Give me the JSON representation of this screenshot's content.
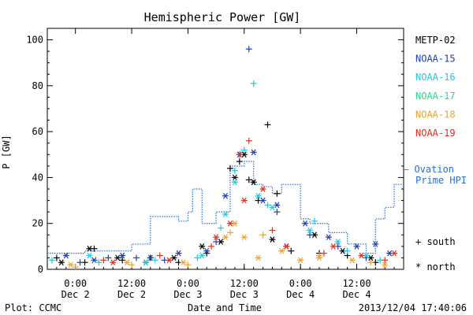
{
  "chart_data": {
    "type": "scatter",
    "title": "Hemispheric Power [GW]",
    "ylabel": "P [GW]",
    "xlabel": "Date and Time",
    "ylim": [
      0,
      105
    ],
    "yticks": [
      0,
      20,
      40,
      60,
      80,
      100
    ],
    "xlim": [
      "2013-12-01 18:00",
      "2013-12-04 22:00"
    ],
    "xticks": [
      {
        "at": "2013-12-02 00:00",
        "time": "0:00",
        "date": "Dec 2"
      },
      {
        "at": "2013-12-02 12:00",
        "time": "12:00",
        "date": "Dec 2"
      },
      {
        "at": "2013-12-03 00:00",
        "time": "0:00",
        "date": "Dec 3"
      },
      {
        "at": "2013-12-03 12:00",
        "time": "12:00",
        "date": "Dec 3"
      },
      {
        "at": "2013-12-04 00:00",
        "time": "0:00",
        "date": "Dec 4"
      },
      {
        "at": "2013-12-04 12:00",
        "time": "12:00",
        "date": "Dec 4"
      }
    ],
    "grid": false,
    "legend_position": "right",
    "series": [
      {
        "name": "METP-02",
        "color": "#000000",
        "south": [
          [
            "2013-12-01 20:00",
            5
          ],
          [
            "2013-12-02 02:00",
            3
          ],
          [
            "2013-12-02 04:00",
            9
          ],
          [
            "2013-12-02 10:00",
            4
          ],
          [
            "2013-12-02 16:00",
            5
          ],
          [
            "2013-12-02 22:00",
            3
          ],
          [
            "2013-12-03 04:00",
            7
          ],
          [
            "2013-12-03 09:00",
            44
          ],
          [
            "2013-12-03 11:00",
            47
          ],
          [
            "2013-12-03 13:00",
            39
          ],
          [
            "2013-12-03 15:00",
            30
          ],
          [
            "2013-12-03 17:00",
            63
          ],
          [
            "2013-12-03 19:00",
            33
          ],
          [
            "2013-12-03 22:00",
            8
          ],
          [
            "2013-12-04 04:00",
            7
          ],
          [
            "2013-12-04 10:00",
            6
          ],
          [
            "2013-12-04 16:00",
            3
          ]
        ],
        "north": [
          [
            "2013-12-01 21:00",
            3
          ],
          [
            "2013-12-02 03:00",
            9
          ],
          [
            "2013-12-02 09:00",
            5
          ],
          [
            "2013-12-02 15:00",
            3
          ],
          [
            "2013-12-02 21:00",
            5
          ],
          [
            "2013-12-03 03:00",
            10
          ],
          [
            "2013-12-03 07:00",
            12
          ],
          [
            "2013-12-03 10:00",
            40
          ],
          [
            "2013-12-03 12:00",
            50
          ],
          [
            "2013-12-03 14:00",
            38
          ],
          [
            "2013-12-03 18:00",
            13
          ],
          [
            "2013-12-03 21:00",
            10
          ],
          [
            "2013-12-04 03:00",
            15
          ],
          [
            "2013-12-04 09:00",
            8
          ],
          [
            "2013-12-04 15:00",
            5
          ]
        ]
      },
      {
        "name": "NOAA-15",
        "color": "#1f3fb0",
        "south": [
          [
            "2013-12-02 01:00",
            3
          ],
          [
            "2013-12-02 07:00",
            5
          ],
          [
            "2013-12-02 13:00",
            5
          ],
          [
            "2013-12-02 19:00",
            4
          ],
          [
            "2013-12-03 06:00",
            12
          ],
          [
            "2013-12-03 13:00",
            96
          ],
          [
            "2013-12-03 19:00",
            25
          ],
          [
            "2013-12-04 02:00",
            15
          ],
          [
            "2013-12-04 08:00",
            10
          ],
          [
            "2013-12-04 14:00",
            5
          ]
        ],
        "north": [
          [
            "2013-12-01 22:00",
            6
          ],
          [
            "2013-12-02 04:00",
            4
          ],
          [
            "2013-12-02 10:00",
            6
          ],
          [
            "2013-12-02 16:00",
            5
          ],
          [
            "2013-12-02 22:00",
            7
          ],
          [
            "2013-12-03 04:00",
            8
          ],
          [
            "2013-12-03 08:00",
            32
          ],
          [
            "2013-12-03 11:00",
            50
          ],
          [
            "2013-12-03 14:00",
            51
          ],
          [
            "2013-12-03 16:00",
            30
          ],
          [
            "2013-12-03 19:00",
            28
          ],
          [
            "2013-12-04 01:00",
            20
          ],
          [
            "2013-12-04 06:00",
            14
          ],
          [
            "2013-12-04 12:00",
            10
          ],
          [
            "2013-12-04 16:00",
            11
          ],
          [
            "2013-12-04 19:00",
            7
          ]
        ]
      },
      {
        "name": "NOAA-16",
        "color": "#22c8e0",
        "south": [
          [
            "2013-12-01 19:00",
            4
          ],
          [
            "2013-12-02 05:00",
            3
          ],
          [
            "2013-12-02 17:00",
            4
          ],
          [
            "2013-12-03 02:00",
            5
          ],
          [
            "2013-12-03 07:00",
            18
          ],
          [
            "2013-12-03 10:00",
            43
          ],
          [
            "2013-12-03 12:00",
            52
          ],
          [
            "2013-12-03 14:00",
            81
          ],
          [
            "2013-12-03 17:00",
            28
          ],
          [
            "2013-12-04 03:00",
            21
          ],
          [
            "2013-12-04 10:00",
            8
          ],
          [
            "2013-12-04 17:00",
            4
          ]
        ],
        "north": [
          [
            "2013-12-02 03:00",
            6
          ],
          [
            "2013-12-02 15:00",
            3
          ],
          [
            "2013-12-03 03:00",
            6
          ],
          [
            "2013-12-03 08:00",
            24
          ],
          [
            "2013-12-03 10:00",
            38
          ],
          [
            "2013-12-03 15:00",
            32
          ],
          [
            "2013-12-03 18:00",
            27
          ],
          [
            "2013-12-04 02:00",
            17
          ],
          [
            "2013-12-04 08:00",
            12
          ],
          [
            "2013-12-04 14:00",
            6
          ]
        ]
      },
      {
        "name": "NOAA-17",
        "color": "#22dd88",
        "south": [],
        "north": []
      },
      {
        "name": "NOAA-18",
        "color": "#f0a030",
        "south": [
          [
            "2013-12-02 00:00",
            1
          ],
          [
            "2013-12-02 12:00",
            2
          ],
          [
            "2013-12-03 00:00",
            2
          ],
          [
            "2013-12-03 09:00",
            16
          ],
          [
            "2013-12-03 16:00",
            15
          ],
          [
            "2013-12-04 04:00",
            6
          ],
          [
            "2013-12-04 15:00",
            3
          ]
        ],
        "north": [
          [
            "2013-12-01 23:00",
            2
          ],
          [
            "2013-12-02 11:00",
            3
          ],
          [
            "2013-12-02 23:00",
            3
          ],
          [
            "2013-12-03 08:00",
            14
          ],
          [
            "2013-12-03 10:00",
            20
          ],
          [
            "2013-12-03 12:00",
            14
          ],
          [
            "2013-12-03 15:00",
            5
          ],
          [
            "2013-12-03 20:00",
            8
          ],
          [
            "2013-12-04 00:00",
            4
          ],
          [
            "2013-12-04 04:00",
            5
          ],
          [
            "2013-12-04 11:00",
            4
          ],
          [
            "2013-12-04 18:00",
            2
          ]
        ]
      },
      {
        "name": "NOAA-19",
        "color": "#e03020",
        "south": [
          [
            "2013-12-02 06:00",
            4
          ],
          [
            "2013-12-02 18:00",
            6
          ],
          [
            "2013-12-03 05:00",
            10
          ],
          [
            "2013-12-03 11:00",
            50
          ],
          [
            "2013-12-03 13:00",
            56
          ],
          [
            "2013-12-03 18:00",
            17
          ],
          [
            "2013-12-04 05:00",
            7
          ],
          [
            "2013-12-04 18:00",
            4
          ]
        ],
        "north": [
          [
            "2013-12-02 08:00",
            3
          ],
          [
            "2013-12-02 20:00",
            4
          ],
          [
            "2013-12-03 06:00",
            14
          ],
          [
            "2013-12-03 09:00",
            20
          ],
          [
            "2013-12-03 12:00",
            30
          ],
          [
            "2013-12-03 16:00",
            35
          ],
          [
            "2013-12-03 21:00",
            10
          ],
          [
            "2013-12-04 07:00",
            10
          ],
          [
            "2013-12-04 13:00",
            6
          ],
          [
            "2013-12-04 20:00",
            7
          ]
        ]
      }
    ],
    "ovation": {
      "name_line1": "Ovation",
      "name_line2": "Prime HPI",
      "color": "#2a6fd0",
      "values": [
        [
          "2013-12-01 18:00",
          7
        ],
        [
          "2013-12-02 02:00",
          8
        ],
        [
          "2013-12-02 12:00",
          11
        ],
        [
          "2013-12-02 16:00",
          23
        ],
        [
          "2013-12-02 22:00",
          21
        ],
        [
          "2013-12-03 00:00",
          25
        ],
        [
          "2013-12-03 01:00",
          35
        ],
        [
          "2013-12-03 03:00",
          20
        ],
        [
          "2013-12-03 06:00",
          25
        ],
        [
          "2013-12-03 09:00",
          45
        ],
        [
          "2013-12-03 12:00",
          47
        ],
        [
          "2013-12-03 14:00",
          37
        ],
        [
          "2013-12-03 16:00",
          36
        ],
        [
          "2013-12-03 18:00",
          33
        ],
        [
          "2013-12-03 20:00",
          37
        ],
        [
          "2013-12-04 00:00",
          22
        ],
        [
          "2013-12-04 02:00",
          20
        ],
        [
          "2013-12-04 06:00",
          16
        ],
        [
          "2013-12-04 10:00",
          11
        ],
        [
          "2013-12-04 14:00",
          7
        ],
        [
          "2013-12-04 16:00",
          22
        ],
        [
          "2013-12-04 18:00",
          27
        ],
        [
          "2013-12-04 20:00",
          37
        ]
      ]
    },
    "marker_legend": {
      "south_symbol": "+",
      "south_label": "south",
      "north_symbol": "*",
      "north_label": "north"
    }
  },
  "footer": {
    "left": "Plot: CCMC",
    "center": "Date and Time",
    "right": "2013/12/04 17:40:06"
  }
}
